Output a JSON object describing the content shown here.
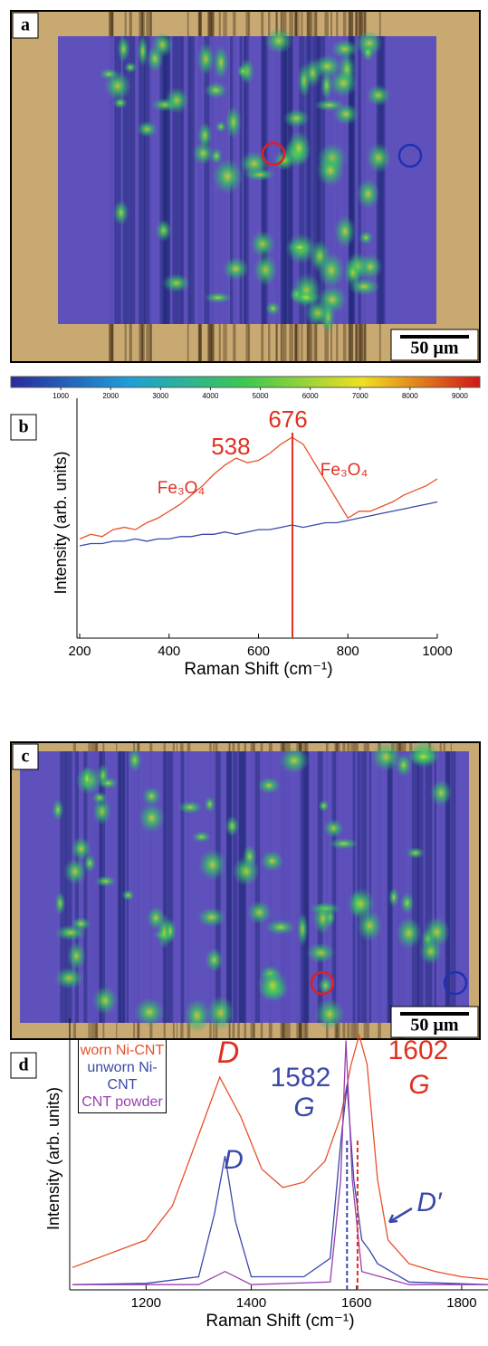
{
  "panels": {
    "a": {
      "label": "a",
      "scale_bar": "50 µm",
      "colorbar": {
        "lim": [
          0,
          9400
        ],
        "ticks": [
          1000,
          2000,
          3000,
          4000,
          5000,
          6000,
          7000,
          8000,
          9000
        ]
      }
    },
    "c": {
      "label": "c",
      "scale_bar": "50 µm"
    }
  },
  "chart_data": [
    {
      "type": "line",
      "panel_label": "b",
      "xlabel": "Raman Shift (cm⁻¹)",
      "ylabel": "Intensity (arb. units)",
      "x": [
        200,
        225,
        250,
        275,
        300,
        325,
        350,
        375,
        400,
        425,
        450,
        475,
        500,
        525,
        550,
        575,
        600,
        625,
        650,
        675,
        700,
        725,
        750,
        775,
        800,
        825,
        850,
        875,
        900,
        925,
        950,
        975,
        1000
      ],
      "series": [
        {
          "color": "#e8502a",
          "values": [
            43,
            45,
            44,
            47,
            48,
            47,
            50,
            52,
            55,
            58,
            62,
            66,
            71,
            75,
            78,
            76,
            77,
            80,
            84,
            87,
            84,
            76,
            68,
            60,
            52,
            55,
            55,
            57,
            59,
            62,
            64,
            66,
            69
          ]
        },
        {
          "color": "#3a48a8",
          "values": [
            40,
            41,
            41,
            42,
            42,
            43,
            42,
            43,
            43,
            44,
            44,
            45,
            45,
            46,
            45,
            46,
            47,
            47,
            48,
            49,
            48,
            49,
            50,
            50,
            51,
            52,
            53,
            54,
            55,
            56,
            57,
            58,
            59
          ]
        }
      ],
      "xlim": [
        200,
        1000
      ],
      "ylim": [
        0,
        100
      ],
      "xticks": [
        200,
        400,
        600,
        800,
        1000
      ],
      "peaks": [
        {
          "label": "676",
          "value": 676,
          "color": "#e03020"
        },
        {
          "label": "538",
          "value": 538,
          "color": "#e03020"
        }
      ],
      "annotations": [
        {
          "text": "Fe₃O₄",
          "color": "#e03020"
        },
        {
          "text": "Fe₃O₄",
          "color": "#e03020"
        }
      ]
    },
    {
      "type": "line",
      "panel_label": "d",
      "xlabel": "Raman Shift (cm⁻¹)",
      "ylabel": "Intensity (arb. units)",
      "series": [
        {
          "name": "worn Ni-CNT",
          "color": "#e8502a",
          "x": [
            1060,
            1200,
            1250,
            1300,
            1340,
            1380,
            1420,
            1460,
            1500,
            1540,
            1570,
            1590,
            1605,
            1620,
            1640,
            1660,
            1700,
            1750,
            1800,
            1850
          ],
          "values": [
            8.5,
            19,
            32,
            59,
            81,
            66,
            46,
            39,
            41,
            49,
            66,
            86,
            97,
            86,
            42,
            19,
            10,
            7,
            5,
            4
          ]
        },
        {
          "name": "unworn Ni-CNT",
          "color": "#3a48a8",
          "x": [
            1060,
            1200,
            1300,
            1330,
            1350,
            1370,
            1400,
            1500,
            1550,
            1570,
            1582,
            1595,
            1610,
            1625,
            1640,
            1700,
            1850
          ],
          "values": [
            2,
            2.5,
            5,
            29,
            51,
            26,
            5,
            5,
            12,
            56,
            78,
            42,
            19,
            15,
            10,
            3,
            2
          ]
        },
        {
          "name": "CNT powder",
          "color": "#9a3fb0",
          "x": [
            1060,
            1300,
            1350,
            1400,
            1550,
            1570,
            1580,
            1592,
            1610,
            1700,
            1850
          ],
          "values": [
            2,
            2,
            7,
            2,
            3,
            42,
            95,
            42,
            7,
            2,
            2
          ]
        }
      ],
      "xlim": [
        1060,
        1850
      ],
      "ylim": [
        0,
        100
      ],
      "xticks": [
        1200,
        1400,
        1600,
        1800
      ],
      "peaks": [
        {
          "label": "1602",
          "value": 1602,
          "color": "#e03020"
        },
        {
          "label": "1582",
          "value": 1582,
          "color": "#3a48a8"
        }
      ],
      "annotations": [
        {
          "text": "D",
          "color": "#e03020"
        },
        {
          "text": "G",
          "color": "#e03020"
        },
        {
          "text": "G",
          "color": "#3a48a8"
        },
        {
          "text": "D",
          "color": "#3a48a8"
        },
        {
          "text": "D′",
          "color": "#3a48a8"
        }
      ]
    }
  ]
}
